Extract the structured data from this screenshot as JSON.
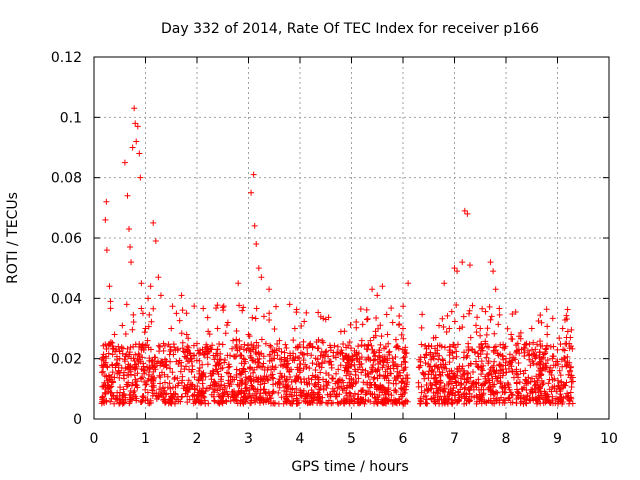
{
  "chart_data": {
    "type": "scatter",
    "title": "Day 332 of 2014, Rate Of TEC Index for receiver p166",
    "xlabel": "GPS time / hours",
    "ylabel": "ROTI / TECUs",
    "xlim": [
      0,
      10
    ],
    "ylim": [
      0,
      0.12
    ],
    "xticks": [
      0,
      1,
      2,
      3,
      4,
      5,
      6,
      7,
      8,
      9,
      10
    ],
    "yticks": [
      0,
      0.02,
      0.04,
      0.06,
      0.08,
      0.1,
      0.12
    ],
    "xtick_labels": [
      "0",
      "1",
      "2",
      "3",
      "4",
      "5",
      "6",
      "7",
      "8",
      "9",
      "10"
    ],
    "ytick_labels": [
      "0",
      "0.02",
      "0.04",
      "0.06",
      "0.08",
      "0.1",
      "0.12"
    ],
    "grid": true,
    "marker": "+",
    "series": [
      {
        "name": "ROTI",
        "color": "#ff0000",
        "x": [
          0.2,
          0.22,
          0.24,
          0.25,
          0.3,
          0.32,
          0.35,
          0.4,
          0.45,
          0.5,
          0.55,
          0.6,
          0.65,
          0.68,
          0.7,
          0.72,
          0.75,
          0.78,
          0.8,
          0.82,
          0.85,
          0.88,
          0.9,
          0.92,
          0.95,
          1.0,
          1.05,
          1.1,
          1.15,
          1.2,
          1.25,
          1.3,
          1.35,
          1.4,
          1.5,
          1.6,
          1.7,
          1.8,
          1.9,
          2.0,
          2.1,
          2.2,
          2.3,
          2.4,
          2.5,
          2.6,
          2.7,
          2.8,
          2.9,
          3.0,
          3.05,
          3.1,
          3.12,
          3.15,
          3.2,
          3.25,
          3.3,
          3.4,
          3.5,
          3.6,
          3.7,
          3.8,
          3.9,
          4.0,
          4.1,
          4.2,
          4.3,
          4.4,
          4.5,
          4.6,
          4.7,
          4.8,
          4.9,
          5.0,
          5.1,
          5.2,
          5.3,
          5.4,
          5.5,
          5.6,
          5.7,
          5.8,
          5.9,
          6.0,
          6.1,
          6.3,
          6.4,
          6.5,
          6.6,
          6.7,
          6.8,
          6.9,
          7.0,
          7.05,
          7.1,
          7.15,
          7.2,
          7.25,
          7.3,
          7.4,
          7.5,
          7.6,
          7.7,
          7.75,
          7.8,
          7.9,
          8.0,
          8.1,
          8.2,
          8.3,
          8.4,
          8.5,
          8.6,
          8.7,
          8.8,
          8.9,
          9.0,
          9.1,
          9.15,
          9.2,
          9.25
        ],
        "y": [
          0.012,
          0.066,
          0.072,
          0.056,
          0.044,
          0.039,
          0.018,
          0.028,
          0.015,
          0.02,
          0.031,
          0.085,
          0.074,
          0.063,
          0.057,
          0.052,
          0.09,
          0.103,
          0.098,
          0.092,
          0.097,
          0.088,
          0.08,
          0.045,
          0.035,
          0.03,
          0.04,
          0.044,
          0.065,
          0.059,
          0.047,
          0.041,
          0.025,
          0.018,
          0.03,
          0.035,
          0.041,
          0.028,
          0.02,
          0.025,
          0.018,
          0.024,
          0.015,
          0.03,
          0.037,
          0.032,
          0.026,
          0.045,
          0.02,
          0.028,
          0.075,
          0.081,
          0.064,
          0.058,
          0.05,
          0.047,
          0.034,
          0.043,
          0.02,
          0.026,
          0.022,
          0.038,
          0.03,
          0.016,
          0.018,
          0.025,
          0.014,
          0.021,
          0.033,
          0.019,
          0.015,
          0.022,
          0.017,
          0.012,
          0.02,
          0.026,
          0.033,
          0.043,
          0.041,
          0.044,
          0.028,
          0.032,
          0.024,
          0.03,
          0.045,
          0.012,
          0.015,
          0.024,
          0.02,
          0.031,
          0.045,
          0.03,
          0.05,
          0.049,
          0.03,
          0.052,
          0.069,
          0.068,
          0.051,
          0.022,
          0.03,
          0.025,
          0.052,
          0.049,
          0.043,
          0.018,
          0.02,
          0.028,
          0.015,
          0.023,
          0.025,
          0.03,
          0.018,
          0.016,
          0.028,
          0.02,
          0.019,
          0.03,
          0.025,
          0.029,
          0.027
        ]
      }
    ],
    "dense_band": {
      "segments": [
        {
          "from": 0.15,
          "to": 6.1
        },
        {
          "from": 6.3,
          "to": 9.3
        }
      ],
      "typical_low": 0.005,
      "typical_high": 0.025
    }
  }
}
